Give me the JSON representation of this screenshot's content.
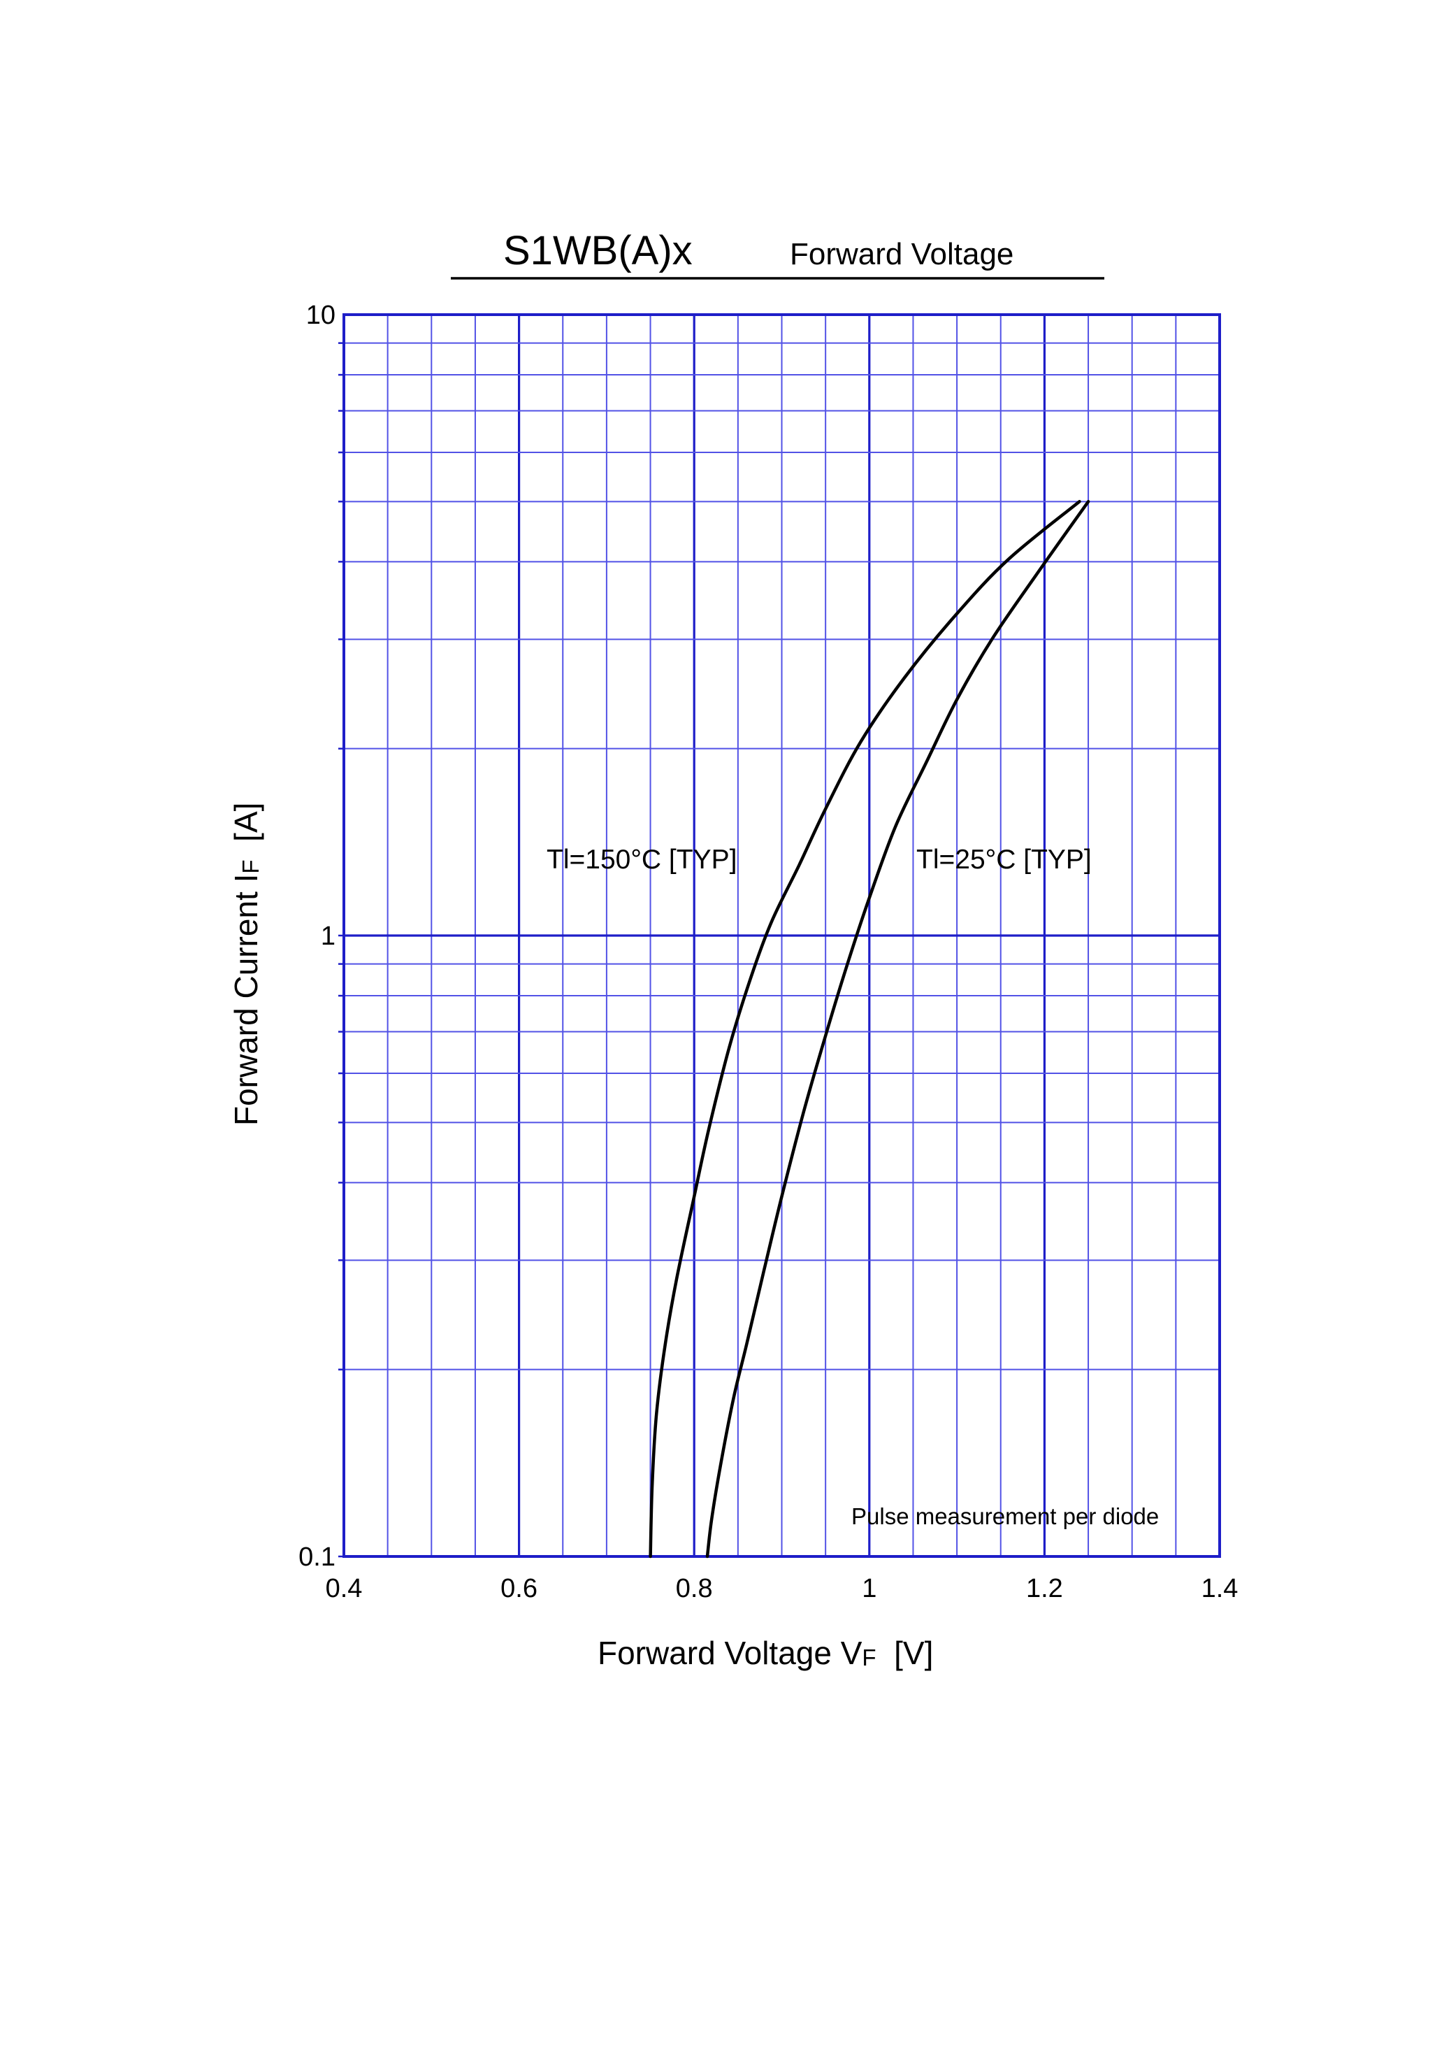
{
  "page": {
    "title_main": "S1WB(A)x",
    "title_sub": "Forward  Voltage"
  },
  "chart_data": {
    "type": "line",
    "title": "S1WB(A)x    Forward  Voltage",
    "xlabel": "Forward Voltage  VF  [V]",
    "ylabel": "Forward Current  IF  [A]",
    "xlabel_parts": {
      "main": "Forward Voltage  V",
      "sub": "F",
      "unit": "  [V]"
    },
    "ylabel_parts": {
      "main": "Forward Current  I",
      "sub": "F",
      "unit": "  [A]"
    },
    "xlim": [
      0.4,
      1.4
    ],
    "ylim": [
      0.1,
      10
    ],
    "yscale": "log",
    "grid": true,
    "x_ticks": [
      0.4,
      0.6,
      0.8,
      1.0,
      1.2,
      1.4
    ],
    "x_tick_labels": [
      "0.4",
      "0.6",
      "0.8",
      "1",
      "1.2",
      "1.4"
    ],
    "y_ticks": [
      0.1,
      1,
      10
    ],
    "y_tick_labels": [
      "0.1",
      "1",
      "10"
    ],
    "annotations": {
      "tl150": "Tl=150°C [TYP]",
      "tl25": "Tl=25°C [TYP]",
      "note": "Pulse  measurement  per  diode"
    },
    "series": [
      {
        "name": "Tl=150°C [TYP]",
        "x": [
          0.75,
          0.752,
          0.757,
          0.767,
          0.78,
          0.8,
          0.817,
          0.84,
          0.864,
          0.888,
          0.92,
          0.95,
          0.99,
          1.04,
          1.1,
          1.16,
          1.24
        ],
        "y": [
          0.1,
          0.13,
          0.17,
          0.22,
          0.28,
          0.38,
          0.49,
          0.66,
          0.85,
          1.05,
          1.3,
          1.6,
          2.05,
          2.6,
          3.3,
          4.05,
          5.0
        ]
      },
      {
        "name": "Tl=25°C [TYP]",
        "x": [
          0.815,
          0.82,
          0.83,
          0.845,
          0.86,
          0.88,
          0.9,
          0.925,
          0.95,
          0.975,
          1.0,
          1.03,
          1.065,
          1.1,
          1.14,
          1.19,
          1.25
        ],
        "y": [
          0.1,
          0.115,
          0.14,
          0.18,
          0.22,
          0.29,
          0.38,
          0.52,
          0.69,
          0.9,
          1.15,
          1.5,
          1.9,
          2.4,
          3.0,
          3.8,
          5.0
        ]
      }
    ],
    "colors": {
      "grid": "#1e1ec8",
      "curves": "#000000"
    }
  }
}
